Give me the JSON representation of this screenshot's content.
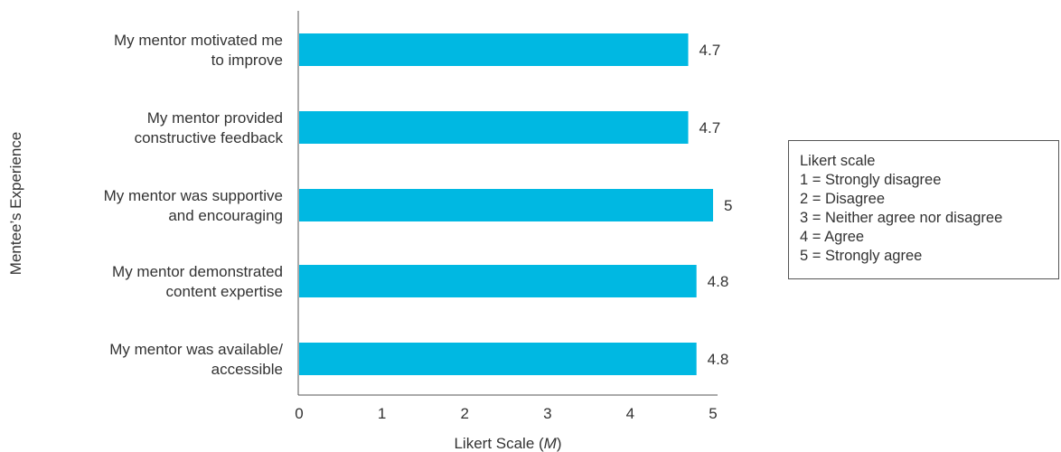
{
  "chart_data": {
    "type": "bar",
    "orientation": "horizontal",
    "categories": [
      [
        "My mentor motivated me",
        "to improve"
      ],
      [
        "My mentor provided",
        "constructive feedback"
      ],
      [
        "My mentor was supportive",
        "and encouraging"
      ],
      [
        "My mentor demonstrated",
        "content expertise"
      ],
      [
        "My mentor was available/",
        "accessible"
      ]
    ],
    "values": [
      4.7,
      4.7,
      5,
      4.8,
      4.8
    ],
    "value_labels": [
      "4.7",
      "4.7",
      "5",
      "4.8",
      "4.8"
    ],
    "xlim": [
      0,
      5
    ],
    "xticks": [
      0,
      1,
      2,
      3,
      4,
      5
    ],
    "xlabel": "Likert Scale (M)",
    "xlabel_main": "Likert Scale (",
    "xlabel_italic": "M",
    "xlabel_end": ")",
    "ylabel": "Mentee’s Experience",
    "bar_color": "#00B8E2",
    "grid": false
  },
  "legend": {
    "lines": [
      "Likert scale",
      "1 = Strongly disagree",
      "2 = Disagree",
      "3 = Neither agree nor disagree",
      "4 = Agree",
      "5 = Strongly agree"
    ]
  }
}
